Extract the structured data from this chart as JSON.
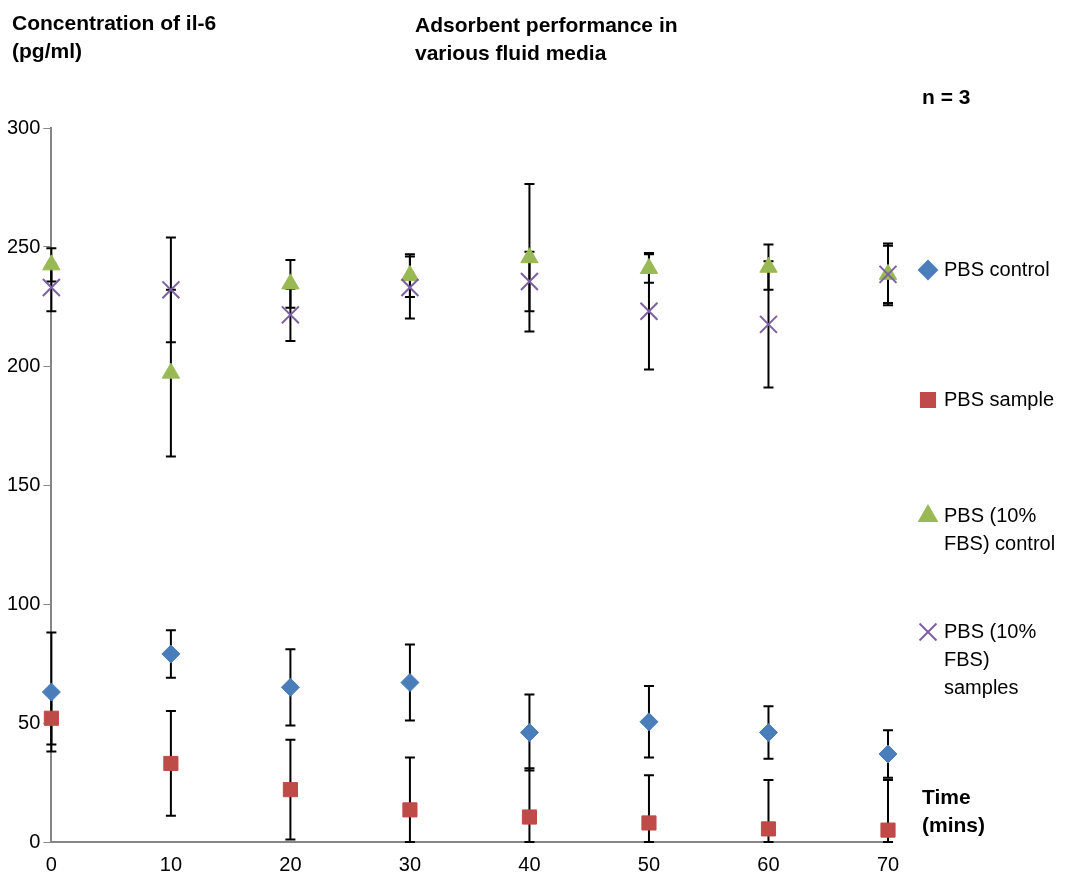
{
  "chart_data": {
    "type": "scatter",
    "title": "Adsorbent performance in various fluid media",
    "ylabel": "Concentration of il-6 (pg/ml)",
    "xlabel": "Time (mins)",
    "annotations": [
      "n = 3"
    ],
    "x": [
      0,
      10,
      20,
      30,
      40,
      50,
      60,
      70
    ],
    "series": [
      {
        "name": "PBS control",
        "color": "#4a7ebb",
        "marker": "diamond",
        "values": [
          63,
          79,
          65,
          67,
          46,
          50.5,
          46,
          37
        ],
        "errors": [
          25,
          10,
          16,
          16,
          16,
          15,
          11,
          10
        ]
      },
      {
        "name": "PBS sample",
        "color": "#be4b48",
        "marker": "square",
        "values": [
          52,
          33,
          22,
          13.5,
          10.5,
          8,
          5.5,
          5
        ],
        "errors": [
          11,
          22,
          21,
          [
            0,
            35.5
          ],
          [
            0,
            31
          ],
          [
            0,
            28
          ],
          [
            0,
            26
          ],
          [
            0,
            26
          ]
        ]
      },
      {
        "name": "PBS (10% FBS) control",
        "color": "#98b954",
        "marker": "triangle",
        "values": [
          242.5,
          197,
          234.5,
          238,
          245.5,
          241,
          241.5,
          238.5
        ],
        "errors": [
          7,
          35,
          10,
          9,
          31,
          6,
          9.5,
          12
        ]
      },
      {
        "name": "PBS (10% FBS) samples",
        "color": "#7d60a0",
        "marker": "cross",
        "values": [
          233,
          232,
          221.5,
          233,
          235.5,
          223,
          217.5,
          238.5
        ],
        "errors": [
          10,
          22,
          11,
          13,
          12.5,
          24.5,
          26.5,
          13
        ]
      }
    ],
    "xlim": [
      0,
      70
    ],
    "xticks": [
      0,
      10,
      20,
      30,
      40,
      50,
      60,
      70
    ],
    "ylim": [
      0,
      300
    ],
    "yticks": [
      0,
      50,
      100,
      150,
      200,
      250,
      300
    ],
    "grid": false,
    "legend": "right"
  }
}
